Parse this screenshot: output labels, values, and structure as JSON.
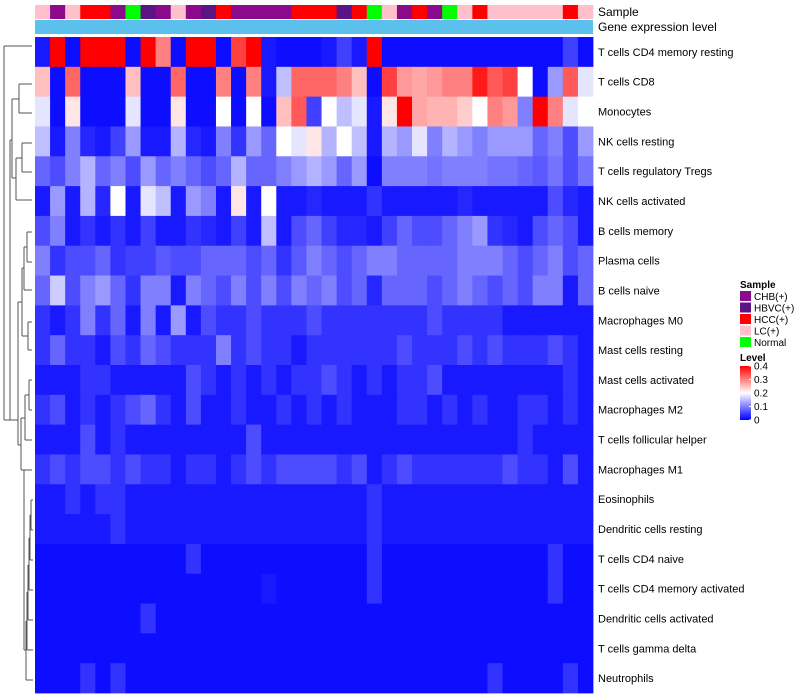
{
  "chart_data": {
    "type": "heatmap",
    "title": "",
    "annotation_tracks": [
      "Sample",
      "Gene expression level"
    ],
    "sample_groups": [
      "CHB(+)",
      "HBVC(+)",
      "HCC(+)",
      "LC(+)",
      "Normal"
    ],
    "group_colors": {
      "CHB(+)": "#8B0A8B",
      "HBVC(+)": "#5A1486",
      "HCC(+)": "#FF0000",
      "LC(+)": "#FFC0CB",
      "Normal": "#00FF00"
    },
    "gene_expression_color": "#5BC0EB",
    "column_samples": [
      "LC(+)",
      "CHB(+)",
      "LC(+)",
      "HCC(+)",
      "HCC(+)",
      "CHB(+)",
      "Normal",
      "HBVC(+)",
      "CHB(+)",
      "LC(+)",
      "CHB(+)",
      "HBVC(+)",
      "HCC(+)",
      "CHB(+)",
      "CHB(+)",
      "CHB(+)",
      "CHB(+)",
      "HCC(+)",
      "HCC(+)",
      "HCC(+)",
      "HBVC(+)",
      "HCC(+)",
      "Normal",
      "LC(+)",
      "CHB(+)",
      "HCC(+)",
      "CHB(+)",
      "Normal",
      "LC(+)",
      "HCC(+)",
      "LC(+)",
      "LC(+)",
      "LC(+)",
      "LC(+)",
      "LC(+)",
      "HCC(+)",
      "LC(+)"
    ],
    "rows": [
      "T cells CD4 memory resting",
      "T cells CD8",
      "Monocytes",
      "NK cells resting",
      "T cells regulatory  Tregs",
      "NK cells activated",
      "B cells memory",
      "Plasma cells",
      "B cells naive",
      "Macrophages M0",
      "Mast cells resting",
      "Mast cells activated",
      "Macrophages M2",
      "T cells follicular helper",
      "Macrophages M1",
      "Eosinophils",
      "Dendritic cells resting",
      "T cells CD4 naive",
      "T cells CD4 memory activated",
      "Dendritic cells activated",
      "T cells gamma delta",
      "Neutrophils"
    ],
    "values": [
      [
        0.02,
        0.4,
        0.01,
        0.4,
        0.4,
        0.4,
        0.01,
        0.4,
        0.3,
        0.01,
        0.4,
        0.4,
        0.01,
        0.35,
        0.4,
        0.02,
        0.01,
        0.01,
        0.01,
        0.02,
        0.05,
        0.02,
        0.4,
        0.01,
        0.01,
        0.01,
        0.01,
        0.01,
        0.01,
        0.01,
        0.01,
        0.01,
        0.01,
        0.01,
        0.01,
        0.05,
        0.01
      ],
      [
        0.25,
        0.01,
        0.32,
        0.01,
        0.01,
        0.01,
        0.25,
        0.01,
        0.01,
        0.32,
        0.01,
        0.01,
        0.3,
        0.01,
        0.3,
        0.02,
        0.15,
        0.32,
        0.32,
        0.32,
        0.3,
        0.25,
        0.01,
        0.35,
        0.28,
        0.27,
        0.28,
        0.3,
        0.3,
        0.38,
        0.33,
        0.35,
        0.2,
        0.01,
        0.12,
        0.33,
        0.18
      ],
      [
        0.18,
        0.01,
        0.22,
        0.01,
        0.01,
        0.01,
        0.18,
        0.01,
        0.01,
        0.22,
        0.01,
        0.01,
        0.2,
        0.01,
        0.2,
        0.01,
        0.25,
        0.33,
        0.05,
        0.2,
        0.15,
        0.18,
        0.02,
        0.22,
        0.4,
        0.27,
        0.26,
        0.26,
        0.24,
        0.2,
        0.3,
        0.28,
        0.1,
        0.4,
        0.3,
        0.18,
        0.2
      ],
      [
        0.15,
        0.02,
        0.1,
        0.03,
        0.02,
        0.05,
        0.12,
        0.02,
        0.02,
        0.14,
        0.03,
        0.02,
        0.1,
        0.04,
        0.12,
        0.08,
        0.2,
        0.18,
        0.22,
        0.14,
        0.2,
        0.15,
        0.02,
        0.14,
        0.12,
        0.18,
        0.1,
        0.14,
        0.12,
        0.1,
        0.12,
        0.12,
        0.12,
        0.08,
        0.1,
        0.06,
        0.12
      ],
      [
        0.08,
        0.06,
        0.1,
        0.14,
        0.08,
        0.1,
        0.06,
        0.12,
        0.08,
        0.1,
        0.08,
        0.06,
        0.08,
        0.14,
        0.08,
        0.08,
        0.1,
        0.12,
        0.14,
        0.12,
        0.08,
        0.12,
        0.01,
        0.1,
        0.1,
        0.1,
        0.09,
        0.1,
        0.1,
        0.1,
        0.09,
        0.09,
        0.08,
        0.07,
        0.09,
        0.06,
        0.09
      ],
      [
        0.02,
        0.12,
        0.02,
        0.14,
        0.03,
        0.2,
        0.02,
        0.18,
        0.15,
        0.02,
        0.12,
        0.1,
        0.02,
        0.22,
        0.02,
        0.2,
        0.02,
        0.02,
        0.03,
        0.02,
        0.02,
        0.02,
        0.04,
        0.02,
        0.02,
        0.02,
        0.02,
        0.02,
        0.03,
        0.02,
        0.02,
        0.02,
        0.02,
        0.02,
        0.06,
        0.03,
        0.02
      ],
      [
        0.06,
        0.1,
        0.02,
        0.04,
        0.02,
        0.04,
        0.02,
        0.05,
        0.02,
        0.02,
        0.04,
        0.03,
        0.02,
        0.05,
        0.02,
        0.15,
        0.02,
        0.06,
        0.08,
        0.05,
        0.03,
        0.03,
        0.02,
        0.05,
        0.08,
        0.06,
        0.06,
        0.08,
        0.1,
        0.12,
        0.04,
        0.03,
        0.02,
        0.06,
        0.08,
        0.06,
        0.02
      ],
      [
        0.1,
        0.04,
        0.06,
        0.06,
        0.08,
        0.04,
        0.05,
        0.05,
        0.07,
        0.06,
        0.06,
        0.08,
        0.08,
        0.08,
        0.06,
        0.08,
        0.04,
        0.07,
        0.1,
        0.08,
        0.06,
        0.08,
        0.1,
        0.1,
        0.08,
        0.08,
        0.08,
        0.08,
        0.1,
        0.1,
        0.1,
        0.08,
        0.06,
        0.08,
        0.1,
        0.06,
        0.08
      ],
      [
        0.08,
        0.16,
        0.06,
        0.1,
        0.12,
        0.08,
        0.04,
        0.1,
        0.1,
        0.02,
        0.1,
        0.08,
        0.06,
        0.1,
        0.06,
        0.1,
        0.06,
        0.1,
        0.08,
        0.1,
        0.06,
        0.08,
        0.03,
        0.08,
        0.08,
        0.08,
        0.06,
        0.08,
        0.1,
        0.08,
        0.06,
        0.08,
        0.06,
        0.1,
        0.1,
        0.02,
        0.08
      ],
      [
        0.04,
        0.02,
        0.04,
        0.1,
        0.04,
        0.08,
        0.02,
        0.1,
        0.02,
        0.12,
        0.02,
        0.06,
        0.04,
        0.04,
        0.06,
        0.04,
        0.04,
        0.04,
        0.06,
        0.04,
        0.04,
        0.04,
        0.04,
        0.04,
        0.04,
        0.04,
        0.06,
        0.04,
        0.04,
        0.04,
        0.04,
        0.02,
        0.02,
        0.02,
        0.02,
        0.02,
        0.02
      ],
      [
        0.04,
        0.08,
        0.04,
        0.04,
        0.02,
        0.06,
        0.04,
        0.08,
        0.06,
        0.04,
        0.04,
        0.04,
        0.1,
        0.04,
        0.06,
        0.04,
        0.04,
        0.02,
        0.04,
        0.04,
        0.04,
        0.04,
        0.04,
        0.04,
        0.06,
        0.04,
        0.04,
        0.04,
        0.06,
        0.04,
        0.06,
        0.04,
        0.04,
        0.04,
        0.06,
        0.04,
        0.02
      ],
      [
        0.02,
        0.02,
        0.02,
        0.04,
        0.04,
        0.02,
        0.02,
        0.02,
        0.02,
        0.02,
        0.06,
        0.04,
        0.02,
        0.04,
        0.02,
        0.04,
        0.02,
        0.04,
        0.04,
        0.06,
        0.04,
        0.02,
        0.04,
        0.02,
        0.04,
        0.04,
        0.06,
        0.02,
        0.02,
        0.02,
        0.02,
        0.02,
        0.02,
        0.02,
        0.02,
        0.04,
        0.02
      ],
      [
        0.04,
        0.06,
        0.02,
        0.04,
        0.02,
        0.04,
        0.06,
        0.08,
        0.04,
        0.02,
        0.06,
        0.02,
        0.02,
        0.04,
        0.02,
        0.02,
        0.04,
        0.02,
        0.04,
        0.02,
        0.04,
        0.02,
        0.02,
        0.02,
        0.04,
        0.04,
        0.02,
        0.04,
        0.02,
        0.04,
        0.02,
        0.02,
        0.04,
        0.04,
        0.02,
        0.04,
        0.02
      ],
      [
        0.02,
        0.02,
        0.02,
        0.06,
        0.02,
        0.04,
        0.02,
        0.02,
        0.02,
        0.02,
        0.02,
        0.02,
        0.02,
        0.02,
        0.06,
        0.02,
        0.02,
        0.02,
        0.02,
        0.02,
        0.02,
        0.02,
        0.02,
        0.02,
        0.02,
        0.02,
        0.02,
        0.02,
        0.02,
        0.02,
        0.02,
        0.02,
        0.04,
        0.02,
        0.02,
        0.02,
        0.02
      ],
      [
        0.04,
        0.06,
        0.04,
        0.06,
        0.06,
        0.04,
        0.06,
        0.04,
        0.04,
        0.02,
        0.04,
        0.04,
        0.02,
        0.04,
        0.06,
        0.04,
        0.06,
        0.06,
        0.06,
        0.06,
        0.04,
        0.06,
        0.02,
        0.04,
        0.06,
        0.04,
        0.04,
        0.04,
        0.04,
        0.04,
        0.04,
        0.06,
        0.04,
        0.04,
        0.02,
        0.06,
        0.02
      ],
      [
        0.02,
        0.02,
        0.04,
        0.02,
        0.04,
        0.04,
        0.02,
        0.02,
        0.02,
        0.02,
        0.02,
        0.02,
        0.02,
        0.02,
        0.02,
        0.02,
        0.02,
        0.02,
        0.02,
        0.02,
        0.02,
        0.02,
        0.04,
        0.02,
        0.02,
        0.02,
        0.02,
        0.02,
        0.02,
        0.02,
        0.02,
        0.02,
        0.02,
        0.02,
        0.02,
        0.02,
        0.02
      ],
      [
        0.02,
        0.02,
        0.02,
        0.02,
        0.02,
        0.04,
        0.02,
        0.02,
        0.02,
        0.02,
        0.02,
        0.02,
        0.02,
        0.02,
        0.02,
        0.02,
        0.02,
        0.02,
        0.02,
        0.02,
        0.02,
        0.02,
        0.04,
        0.02,
        0.02,
        0.02,
        0.02,
        0.02,
        0.02,
        0.02,
        0.02,
        0.02,
        0.02,
        0.02,
        0.02,
        0.02,
        0.02
      ],
      [
        0.01,
        0.01,
        0.01,
        0.01,
        0.01,
        0.01,
        0.01,
        0.01,
        0.01,
        0.01,
        0.04,
        0.01,
        0.01,
        0.01,
        0.01,
        0.01,
        0.01,
        0.01,
        0.01,
        0.01,
        0.01,
        0.01,
        0.04,
        0.01,
        0.01,
        0.01,
        0.01,
        0.01,
        0.01,
        0.01,
        0.01,
        0.01,
        0.01,
        0.01,
        0.04,
        0.01,
        0.01
      ],
      [
        0.01,
        0.01,
        0.01,
        0.01,
        0.01,
        0.01,
        0.01,
        0.01,
        0.01,
        0.01,
        0.01,
        0.01,
        0.01,
        0.01,
        0.01,
        0.02,
        0.01,
        0.01,
        0.01,
        0.01,
        0.01,
        0.01,
        0.04,
        0.01,
        0.01,
        0.01,
        0.01,
        0.01,
        0.01,
        0.01,
        0.01,
        0.01,
        0.01,
        0.01,
        0.04,
        0.01,
        0.01
      ],
      [
        0.01,
        0.01,
        0.01,
        0.01,
        0.01,
        0.01,
        0.01,
        0.04,
        0.01,
        0.01,
        0.01,
        0.01,
        0.01,
        0.01,
        0.01,
        0.01,
        0.01,
        0.01,
        0.01,
        0.01,
        0.01,
        0.01,
        0.01,
        0.01,
        0.01,
        0.01,
        0.01,
        0.01,
        0.01,
        0.01,
        0.01,
        0.01,
        0.01,
        0.01,
        0.01,
        0.01,
        0.01
      ],
      [
        0.01,
        0.01,
        0.01,
        0.01,
        0.01,
        0.01,
        0.01,
        0.01,
        0.01,
        0.01,
        0.01,
        0.01,
        0.01,
        0.01,
        0.01,
        0.01,
        0.01,
        0.01,
        0.01,
        0.01,
        0.01,
        0.01,
        0.01,
        0.01,
        0.01,
        0.01,
        0.01,
        0.01,
        0.01,
        0.01,
        0.01,
        0.01,
        0.01,
        0.01,
        0.01,
        0.01,
        0.01
      ],
      [
        0.01,
        0.01,
        0.01,
        0.04,
        0.01,
        0.04,
        0.01,
        0.01,
        0.01,
        0.01,
        0.01,
        0.01,
        0.01,
        0.01,
        0.01,
        0.01,
        0.01,
        0.01,
        0.01,
        0.01,
        0.01,
        0.01,
        0.01,
        0.01,
        0.01,
        0.01,
        0.01,
        0.01,
        0.01,
        0.01,
        0.04,
        0.01,
        0.01,
        0.01,
        0.01,
        0.04,
        0.01
      ]
    ],
    "color_scale": {
      "min": 0,
      "max": 0.4,
      "stops": [
        {
          "value": 0,
          "color": "#0000FF"
        },
        {
          "value": 0.2,
          "color": "#FFFFFF"
        },
        {
          "value": 0.4,
          "color": "#FF0000"
        }
      ]
    },
    "legend_sample": {
      "title": "Sample",
      "entries": [
        "CHB(+)",
        "HBVC(+)",
        "HCC(+)",
        "LC(+)",
        "Normal"
      ]
    },
    "legend_level": {
      "title": "Level",
      "ticks": [
        "0.4",
        "0.3",
        "0.2",
        "0.1",
        "0"
      ],
      "tick_values": [
        0.4,
        0.3,
        0.2,
        0.1,
        0
      ]
    }
  }
}
